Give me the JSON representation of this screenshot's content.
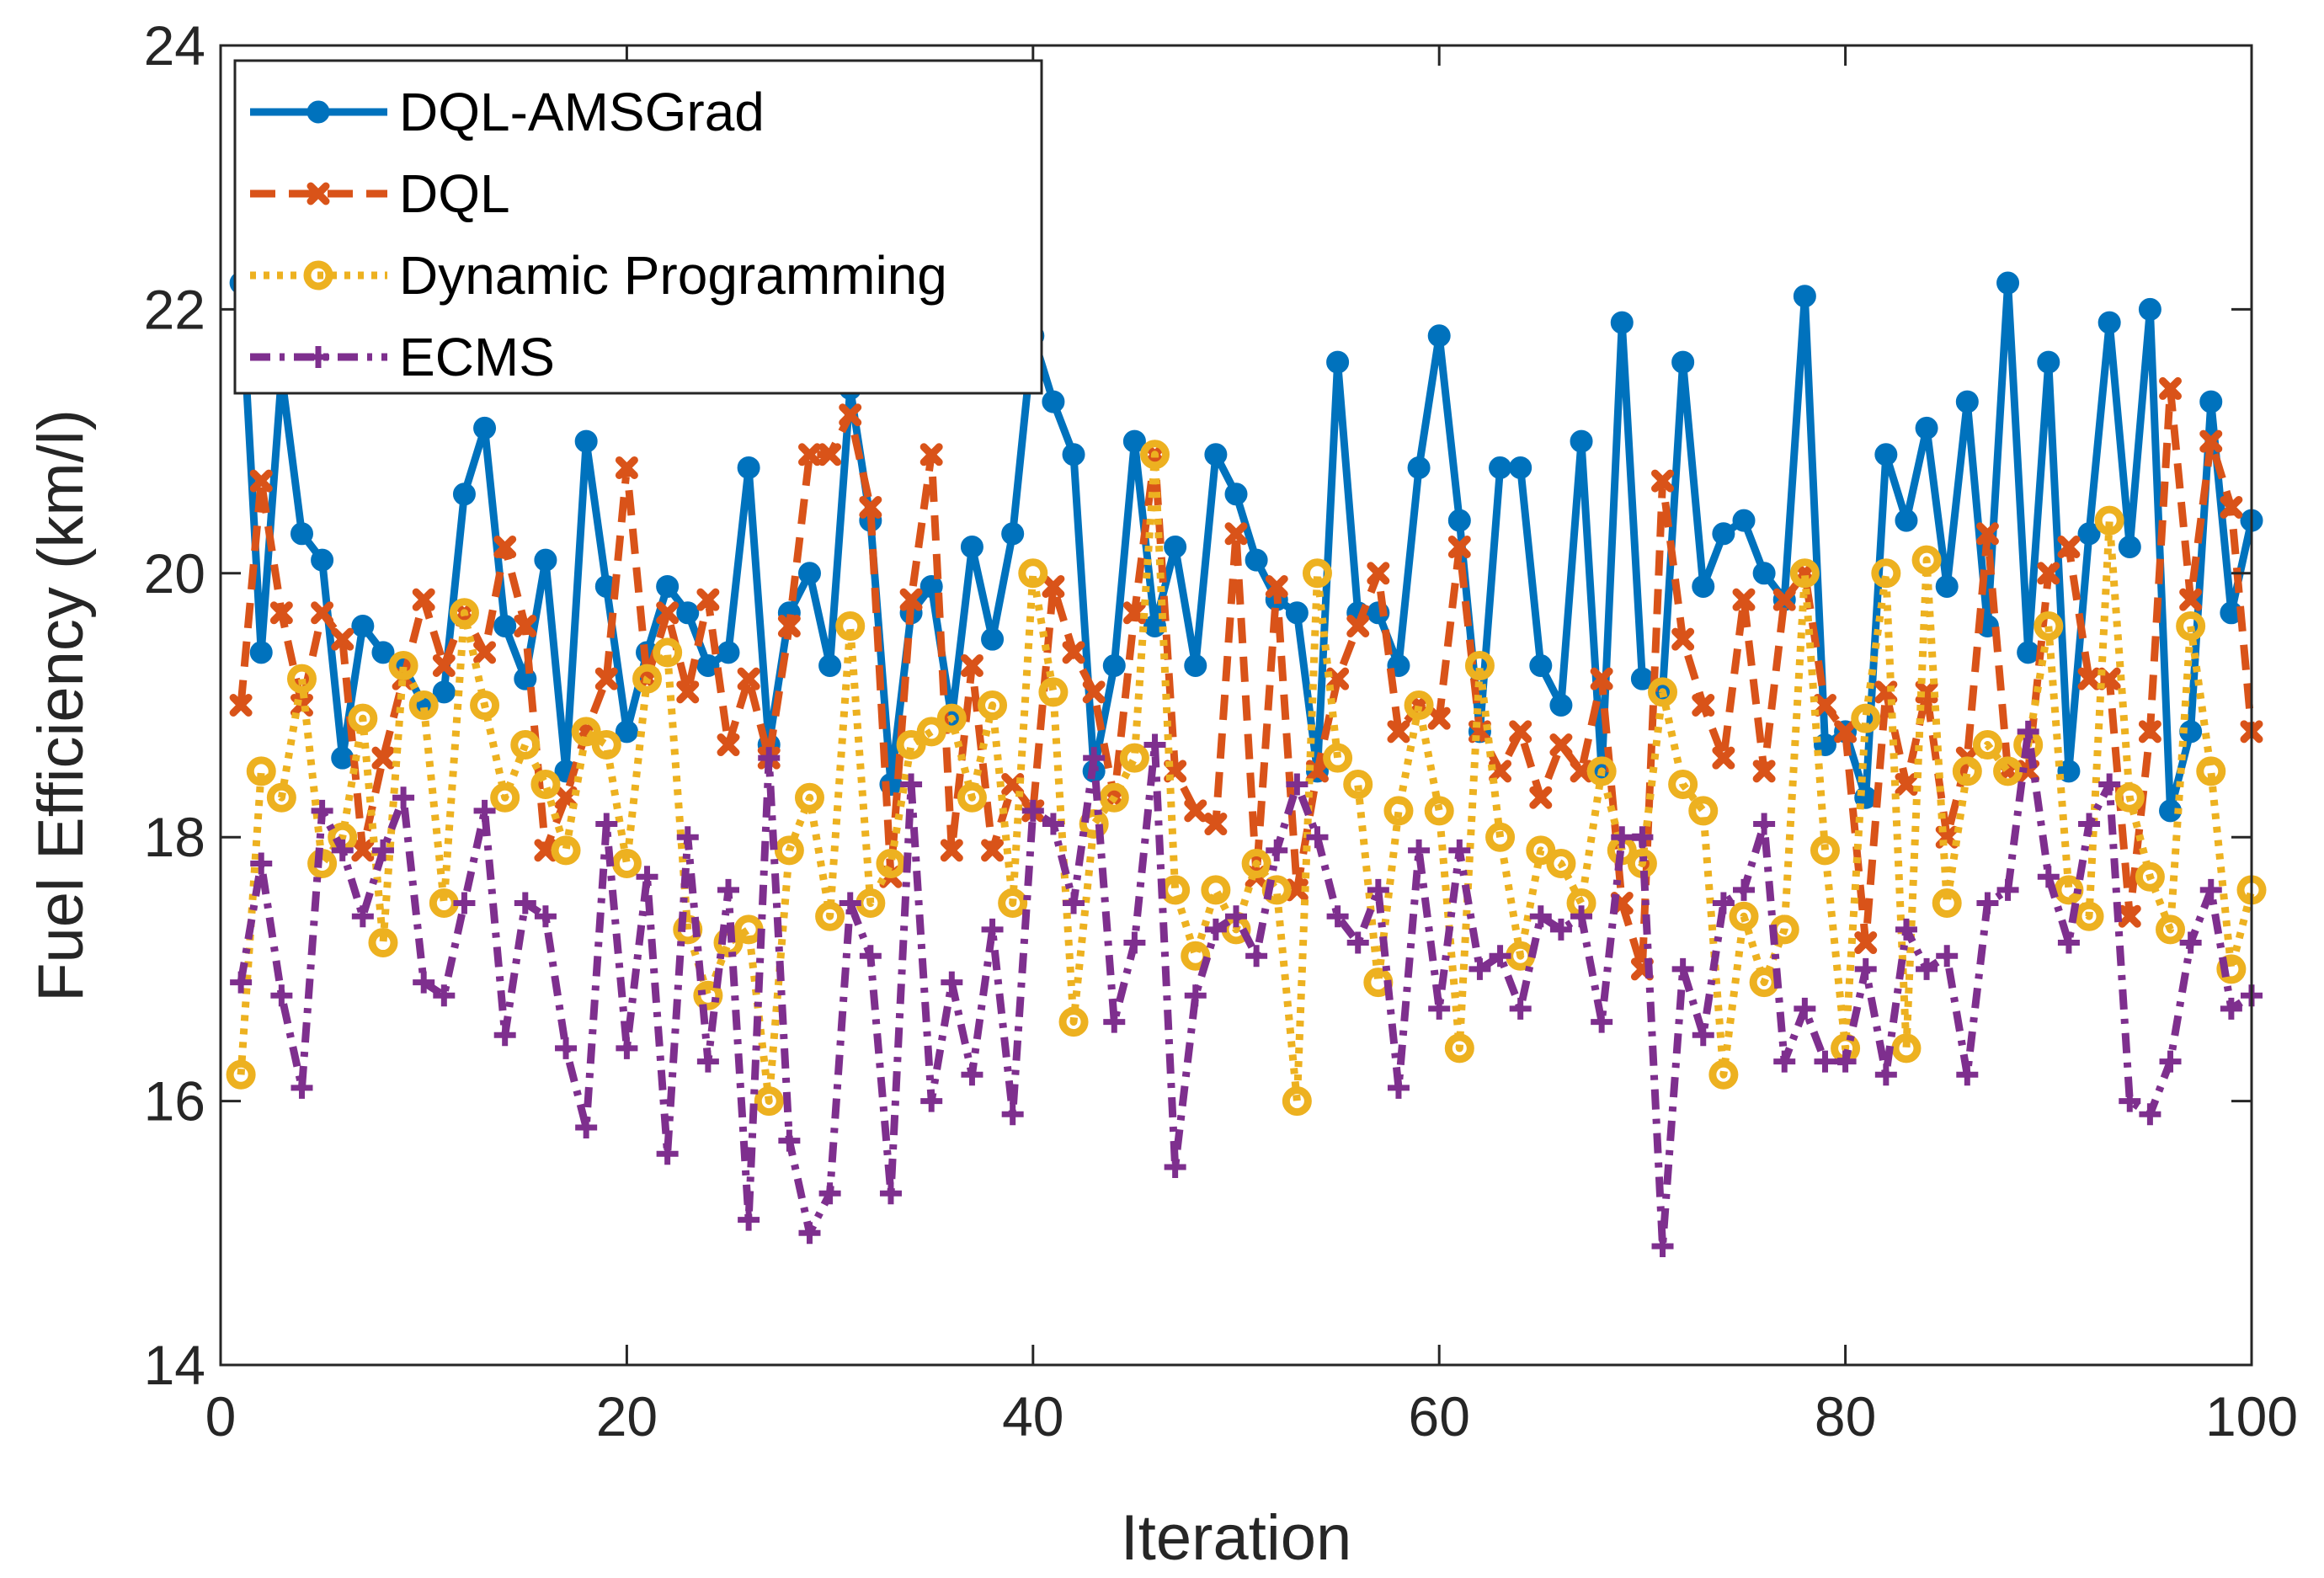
{
  "chart_data": {
    "type": "line",
    "title": "",
    "xlabel": "Iteration",
    "ylabel": "Fuel Efficiency (km/l)",
    "xlim": [
      0,
      100
    ],
    "ylim": [
      14,
      24
    ],
    "xticks": [
      "0",
      "20",
      "40",
      "60",
      "80",
      "100"
    ],
    "yticks": [
      "14",
      "16",
      "18",
      "20",
      "22",
      "24"
    ],
    "grid": false,
    "legend_position": "top-left",
    "x": [
      1,
      2,
      3,
      4,
      5,
      6,
      7,
      8,
      9,
      10,
      11,
      12,
      13,
      14,
      15,
      16,
      17,
      18,
      19,
      20,
      21,
      22,
      23,
      24,
      25,
      26,
      27,
      28,
      29,
      30,
      31,
      32,
      33,
      34,
      35,
      36,
      37,
      38,
      39,
      40,
      41,
      42,
      43,
      44,
      45,
      46,
      47,
      48,
      49,
      50,
      51,
      52,
      53,
      54,
      55,
      56,
      57,
      58,
      59,
      60,
      61,
      62,
      63,
      64,
      65,
      66,
      67,
      68,
      69,
      70,
      71,
      72,
      73,
      74,
      75,
      76,
      77,
      78,
      79,
      80,
      81,
      82,
      83,
      84,
      85,
      86,
      87,
      88,
      89,
      90,
      91,
      92,
      93,
      94,
      95,
      96,
      97,
      98,
      99,
      100
    ],
    "series": [
      {
        "name": "DQL-AMSGrad",
        "color": "#0072BD",
        "style": "solid",
        "marker": "filled-circle",
        "values": [
          22.2,
          19.4,
          21.5,
          20.3,
          20.1,
          18.6,
          19.6,
          19.4,
          19.3,
          19.0,
          19.1,
          20.6,
          21.1,
          19.6,
          19.2,
          20.1,
          18.5,
          21.0,
          19.9,
          18.8,
          19.4,
          19.9,
          19.7,
          19.3,
          19.4,
          20.8,
          18.7,
          19.7,
          20.0,
          19.3,
          21.4,
          20.4,
          18.4,
          19.7,
          19.9,
          18.9,
          20.2,
          19.5,
          20.3,
          21.8,
          21.3,
          20.9,
          18.5,
          19.3,
          21.0,
          19.6,
          20.2,
          19.3,
          20.9,
          20.6,
          20.1,
          19.8,
          19.7,
          18.5,
          21.6,
          19.7,
          19.7,
          19.3,
          20.8,
          21.8,
          20.4,
          18.8,
          20.8,
          20.8,
          19.3,
          19.0,
          21.0,
          18.5,
          21.9,
          19.2,
          19.1,
          21.6,
          19.9,
          20.3,
          20.4,
          20.0,
          19.8,
          22.1,
          18.7,
          18.8,
          18.3,
          20.9,
          20.4,
          21.1,
          19.9,
          21.3,
          19.6,
          22.2,
          19.4,
          21.6,
          18.5,
          20.3,
          21.9,
          20.2,
          22.0,
          18.2,
          18.8,
          21.3,
          19.7,
          20.4
        ]
      },
      {
        "name": "DQL",
        "color": "#D95319",
        "style": "dashed",
        "marker": "x",
        "values": [
          19.0,
          20.7,
          19.7,
          19.0,
          19.7,
          19.5,
          17.9,
          18.6,
          19.2,
          19.8,
          19.3,
          19.7,
          19.4,
          20.2,
          19.6,
          17.9,
          18.3,
          18.8,
          19.2,
          20.8,
          19.2,
          19.7,
          19.1,
          19.8,
          18.7,
          19.2,
          18.6,
          19.6,
          20.9,
          20.9,
          21.2,
          20.5,
          17.7,
          19.8,
          20.9,
          17.9,
          19.3,
          17.9,
          18.4,
          18.2,
          19.9,
          19.4,
          19.1,
          18.3,
          19.7,
          20.9,
          18.5,
          18.2,
          18.1,
          20.3,
          17.7,
          19.9,
          17.6,
          18.5,
          19.2,
          19.6,
          20.0,
          18.8,
          19.0,
          18.9,
          20.2,
          18.8,
          18.5,
          18.8,
          18.3,
          18.7,
          18.5,
          19.2,
          17.5,
          17.0,
          20.7,
          19.5,
          19.0,
          18.6,
          19.8,
          18.5,
          19.8,
          20.0,
          19.0,
          18.8,
          17.2,
          19.1,
          18.4,
          19.1,
          18.0,
          18.6,
          20.3,
          18.5,
          18.5,
          20.0,
          20.2,
          19.2,
          19.2,
          17.4,
          18.8,
          21.4,
          19.8,
          21.0,
          20.5,
          18.8
        ]
      },
      {
        "name": "Dynamic Programming",
        "color": "#EDB120",
        "style": "dotted",
        "marker": "open-circle",
        "values": [
          16.2,
          18.5,
          18.3,
          19.2,
          17.8,
          18.0,
          18.9,
          17.2,
          19.3,
          19.0,
          17.5,
          19.7,
          19.0,
          18.3,
          18.7,
          18.4,
          17.9,
          18.8,
          18.7,
          17.8,
          19.2,
          19.4,
          17.3,
          16.8,
          17.2,
          17.3,
          16.0,
          17.9,
          18.3,
          17.4,
          19.6,
          17.5,
          17.8,
          18.7,
          18.8,
          18.9,
          18.3,
          19.0,
          17.5,
          20.0,
          19.1,
          16.6,
          18.1,
          18.3,
          18.6,
          20.9,
          17.6,
          17.1,
          17.6,
          17.3,
          17.8,
          17.6,
          16.0,
          20.0,
          18.6,
          18.4,
          16.9,
          18.2,
          19.0,
          18.2,
          16.4,
          19.3,
          18.0,
          17.1,
          17.9,
          17.8,
          17.5,
          18.5,
          17.9,
          17.8,
          19.1,
          18.4,
          18.2,
          16.2,
          17.4,
          16.9,
          17.3,
          20.0,
          17.9,
          16.4,
          18.9,
          20.0,
          16.4,
          20.1,
          17.5,
          18.5,
          18.7,
          18.5,
          18.7,
          19.6,
          17.6,
          17.4,
          20.4,
          18.3,
          17.7,
          17.3,
          19.6,
          18.5,
          17.0,
          17.6
        ]
      },
      {
        "name": "ECMS",
        "color": "#7E2F8E",
        "style": "dashdot",
        "marker": "plus",
        "values": [
          16.9,
          17.8,
          16.8,
          16.1,
          18.2,
          17.9,
          17.4,
          17.9,
          18.3,
          16.9,
          16.8,
          17.5,
          18.2,
          16.5,
          17.5,
          17.4,
          16.4,
          15.8,
          18.1,
          16.4,
          17.7,
          15.6,
          18.0,
          16.3,
          17.6,
          15.1,
          18.6,
          15.7,
          15.0,
          15.3,
          17.5,
          17.1,
          15.3,
          18.4,
          16.0,
          16.9,
          16.2,
          17.3,
          15.9,
          18.2,
          18.1,
          17.5,
          18.6,
          16.6,
          17.2,
          18.7,
          15.5,
          16.8,
          17.3,
          17.4,
          17.1,
          17.9,
          18.4,
          18.0,
          17.4,
          17.2,
          17.6,
          16.1,
          17.9,
          16.7,
          17.9,
          17.0,
          17.1,
          16.7,
          17.4,
          17.3,
          17.4,
          16.6,
          18.0,
          18.0,
          14.9,
          17.0,
          16.5,
          17.5,
          17.6,
          18.1,
          16.3,
          16.7,
          16.3,
          16.3,
          17.0,
          16.2,
          17.3,
          17.0,
          17.1,
          16.2,
          17.5,
          17.6,
          18.8,
          17.7,
          17.2,
          18.1,
          18.4,
          16.0,
          15.9,
          16.3,
          17.2,
          17.6,
          16.7,
          16.8
        ]
      }
    ]
  }
}
